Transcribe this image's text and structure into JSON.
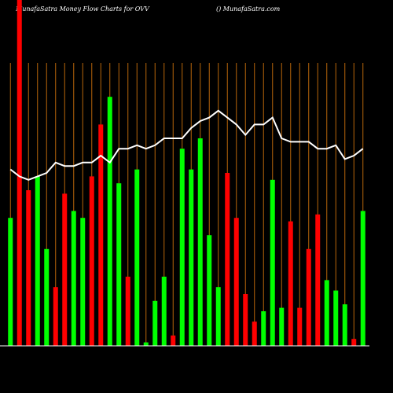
{
  "chart_data": {
    "type": "bar",
    "title": "MunafaSatra  Money Flow  Charts for OVV",
    "subtitle": "() MunafaSatra.com",
    "categories": [
      null,
      null,
      null,
      null,
      null,
      null,
      null,
      null,
      null,
      null,
      null,
      null,
      null,
      null,
      null,
      null,
      null,
      null,
      null,
      null,
      null,
      null,
      null,
      null,
      null,
      null,
      null,
      null,
      null,
      null,
      null,
      null,
      null,
      null,
      null,
      null,
      null,
      null,
      null,
      null
    ],
    "ylim": [
      0,
      100
    ],
    "series": [
      {
        "type": "bar",
        "values": [
          37,
          100,
          45,
          49,
          28,
          17,
          44,
          39,
          37,
          49,
          64,
          72,
          47,
          20,
          51,
          1,
          13,
          20,
          3,
          57,
          51,
          60,
          32,
          17,
          50,
          37,
          15,
          7,
          10,
          48,
          11,
          36,
          11,
          28,
          38,
          19,
          16,
          12,
          2,
          39
        ],
        "colors": [
          "#00ff00",
          "#ff0000",
          "#ff0000",
          "#00ff00",
          "#00ff00",
          "#ff0000",
          "#ff0000",
          "#00ff00",
          "#00ff00",
          "#ff0000",
          "#ff0000",
          "#00ff00",
          "#00ff00",
          "#ff0000",
          "#00ff00",
          "#00ff00",
          "#00ff00",
          "#00ff00",
          "#ff0000",
          "#00ff00",
          "#00ff00",
          "#00ff00",
          "#00ff00",
          "#00ff00",
          "#ff0000",
          "#ff0000",
          "#ff0000",
          "#ff0000",
          "#00ff00",
          "#00ff00",
          "#00ff00",
          "#ff0000",
          "#ff0000",
          "#ff0000",
          "#ff0000",
          "#00ff00",
          "#00ff00",
          "#00ff00",
          "#ff0000",
          "#00ff00"
        ]
      },
      {
        "type": "line",
        "color": "#ffffff",
        "values": [
          51,
          49,
          48,
          49,
          50,
          53,
          52,
          52,
          53,
          53,
          55,
          53,
          57,
          57,
          58,
          57,
          58,
          60,
          60,
          60,
          63,
          65,
          66,
          68,
          66,
          64,
          61,
          64,
          64,
          66,
          60,
          59,
          59,
          59,
          57,
          57,
          58,
          54,
          55,
          57
        ]
      }
    ]
  }
}
